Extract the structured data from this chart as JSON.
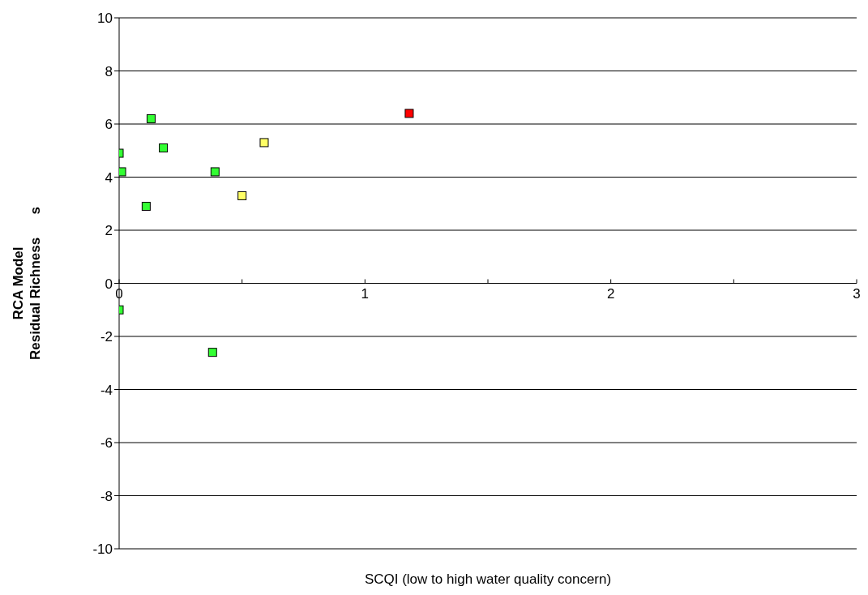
{
  "chart_data": {
    "type": "scatter",
    "xlabel": "SCQI (low to high water quality concern)",
    "ylabel": [
      "RCA Model",
      "Residual Richness      s"
    ],
    "x": [
      0,
      0.01,
      0,
      0.13,
      0.11,
      0.18,
      0.39,
      0.38,
      0.5,
      0.59,
      1.18
    ],
    "values": [
      4.9,
      4.2,
      -1.0,
      6.2,
      2.9,
      5.1,
      4.2,
      -2.6,
      3.3,
      5.3,
      6.4
    ],
    "colors": [
      "#33ff33",
      "#33ff33",
      "#33ff33",
      "#33ff33",
      "#33ff33",
      "#33ff33",
      "#33ff33",
      "#33ff33",
      "#ffff66",
      "#ffff66",
      "#ff0000"
    ],
    "marker": "square",
    "xlim": [
      0,
      3
    ],
    "ylim": [
      -10,
      10
    ],
    "xticks": [
      0,
      {
        "value": 0.5,
        "label": null
      },
      1,
      {
        "value": 1.5,
        "label": null
      },
      2,
      {
        "value": 2.5,
        "label": null
      },
      3
    ],
    "yticks": [
      -10,
      -8,
      -6,
      -4,
      -2,
      0,
      2,
      4,
      6,
      8,
      10
    ],
    "grid": "y"
  }
}
